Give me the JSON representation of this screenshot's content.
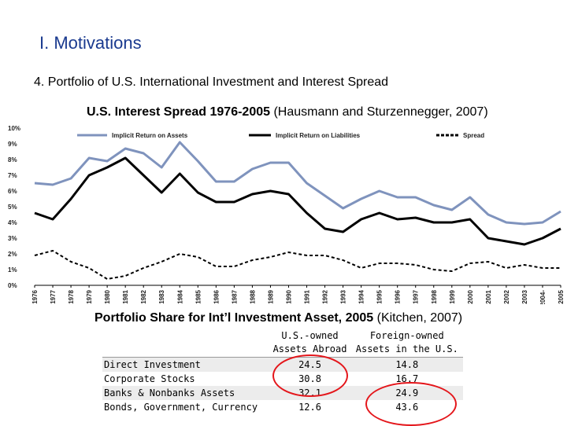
{
  "slide": {
    "title": "I. Motivations",
    "subtitle": "4. Portfolio of U.S. International Investment and Interest Spread"
  },
  "chart_caption": {
    "bold": "U.S. Interest Spread 1976-2005",
    "rest": " (Hausmann and Sturzennegger, 2007)"
  },
  "chart_data": {
    "type": "line",
    "x": [
      1976,
      1977,
      1978,
      1979,
      1980,
      1981,
      1982,
      1983,
      1984,
      1985,
      1986,
      1987,
      1988,
      1989,
      1990,
      1991,
      1992,
      1993,
      1994,
      1995,
      1996,
      1997,
      1998,
      1999,
      2000,
      2001,
      2002,
      2003,
      2004,
      2005
    ],
    "x_tick_labels": [
      "1976",
      "1977",
      "1978",
      "1979",
      "1980",
      "1981",
      "1982",
      "1983",
      "1984",
      "1985",
      "1986",
      "1987",
      "1988",
      "1989",
      "1990",
      "1991",
      "1992",
      "1993",
      "1994",
      "1995",
      "1996",
      "1997",
      "1998",
      "1999",
      "2000",
      "2001",
      "2002",
      "2003",
      "2004-",
      "2005"
    ],
    "ylim": [
      0,
      10
    ],
    "y_tick_labels": [
      "0%",
      "1%",
      "2%",
      "3%",
      "4%",
      "5%",
      "6%",
      "7%",
      "8%",
      "9%",
      "10%"
    ],
    "grid": false,
    "legend_position": "top",
    "series": [
      {
        "name": "Implicit Return on Assets",
        "color": "#7f93bd",
        "style": "solid",
        "values": [
          6.5,
          6.4,
          6.8,
          8.1,
          7.9,
          8.7,
          8.4,
          7.5,
          9.1,
          7.9,
          6.6,
          6.6,
          7.4,
          7.8,
          7.8,
          6.5,
          5.7,
          4.9,
          5.5,
          6.0,
          5.6,
          5.6,
          5.1,
          4.8,
          5.6,
          4.5,
          4.0,
          3.9,
          4.0,
          4.7
        ]
      },
      {
        "name": "Implicit Return on Liabilities",
        "color": "#000000",
        "style": "solid",
        "values": [
          4.6,
          4.2,
          5.5,
          7.0,
          7.5,
          8.1,
          7.0,
          5.9,
          7.1,
          5.9,
          5.3,
          5.3,
          5.8,
          6.0,
          5.8,
          4.6,
          3.6,
          3.4,
          4.2,
          4.6,
          4.2,
          4.3,
          4.0,
          4.0,
          4.2,
          3.0,
          2.8,
          2.6,
          3.0,
          3.6
        ]
      },
      {
        "name": "Spread",
        "color": "#000000",
        "style": "dashed",
        "values": [
          1.9,
          2.2,
          1.5,
          1.1,
          0.4,
          0.6,
          1.1,
          1.5,
          2.0,
          1.8,
          1.2,
          1.2,
          1.6,
          1.8,
          2.1,
          1.9,
          1.9,
          1.6,
          1.1,
          1.4,
          1.4,
          1.3,
          1.0,
          0.9,
          1.4,
          1.5,
          1.1,
          1.3,
          1.1,
          1.1
        ]
      }
    ]
  },
  "table": {
    "caption_bold": "Portfolio Share for Int’l Investment Asset, 2005",
    "caption_rest": " (Kitchen, 2007)",
    "col1_line1": "U.S.-owned",
    "col1_line2": "Assets Abroad",
    "col2_line1": "Foreign-owned",
    "col2_line2": "Assets in the U.S.",
    "rows": [
      {
        "label": "Direct Investment",
        "us": "24.5",
        "foreign": "14.8"
      },
      {
        "label": "Corporate Stocks",
        "us": "30.8",
        "foreign": "16.7"
      },
      {
        "label": "Banks & Nonbanks Assets",
        "us": "32.1",
        "foreign": "24.9"
      },
      {
        "label": "Bonds, Government, Currency",
        "us": "12.6",
        "foreign": "43.6"
      }
    ],
    "highlight_color": "#e4161b"
  }
}
